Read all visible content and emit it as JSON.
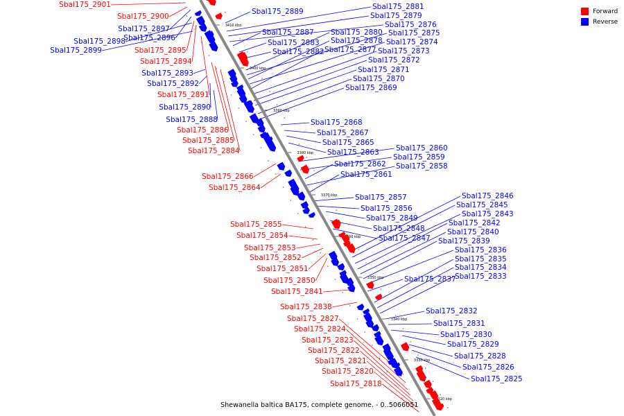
{
  "colors": {
    "forward": "#ff0000",
    "reverse": "#0000ff",
    "backbone": "#888888"
  },
  "legend": [
    {
      "label": "Forward",
      "color": "#ff0000"
    },
    {
      "label": "Reverse",
      "color": "#0000ff"
    }
  ],
  "caption": "Shewanella baltica BA175, complete genome. - 0..5066051",
  "ticks": [
    "3410 kbp",
    "3400 kbp",
    "3390 kbp",
    "3380 kbp",
    "3370 kbp",
    "3360 kbp",
    "3350 kbp",
    "3340 kbp",
    "3330 kbp",
    "3320 kbp"
  ],
  "forward_genes": [
    "Sbal175_2901",
    "Sbal175_2900",
    "Sbal175_2895",
    "Sbal175_2894",
    "Sbal175_2891",
    "Sbal175_2886",
    "Sbal175_2885",
    "Sbal175_2884",
    "Sbal175_2866",
    "Sbal175_2864",
    "Sbal175_2855",
    "Sbal175_2854",
    "Sbal175_2853",
    "Sbal175_2852",
    "Sbal175_2851",
    "Sbal175_2850",
    "Sbal175_2841",
    "Sbal175_2838",
    "Sbal175_2827",
    "Sbal175_2824",
    "Sbal175_2823",
    "Sbal175_2822",
    "Sbal175_2821",
    "Sbal175_2820",
    "Sbal175_2818"
  ],
  "reverse_genes": [
    "Sbal175_2889",
    "Sbal175_2881",
    "Sbal175_2879",
    "Sbal175_2897",
    "Sbal175_2876",
    "Sbal175_2896",
    "Sbal175_2898",
    "Sbal175_2899",
    "Sbal175_2887",
    "Sbal175_2880",
    "Sbal175_2875",
    "Sbal175_2883",
    "Sbal175_2878",
    "Sbal175_2874",
    "Sbal175_2882",
    "Sbal175_2877",
    "Sbal175_2873",
    "Sbal175_2872",
    "Sbal175_2893",
    "Sbal175_2871",
    "Sbal175_2892",
    "Sbal175_2870",
    "Sbal175_2869",
    "Sbal175_2890",
    "Sbal175_2888",
    "Sbal175_2868",
    "Sbal175_2867",
    "Sbal175_2865",
    "Sbal175_2863",
    "Sbal175_2860",
    "Sbal175_2859",
    "Sbal175_2862",
    "Sbal175_2858",
    "Sbal175_2861",
    "Sbal175_2857",
    "Sbal175_2856",
    "Sbal175_2846",
    "Sbal175_2845",
    "Sbal175_2843",
    "Sbal175_2849",
    "Sbal175_2842",
    "Sbal175_2848",
    "Sbal175_2840",
    "Sbal175_2847",
    "Sbal175_2839",
    "Sbal175_2836",
    "Sbal175_2835",
    "Sbal175_2834",
    "Sbal175_2833",
    "Sbal175_2837",
    "Sbal175_2832",
    "Sbal175_2831",
    "Sbal175_2830",
    "Sbal175_2829",
    "Sbal175_2828",
    "Sbal175_2826",
    "Sbal175_2825"
  ]
}
